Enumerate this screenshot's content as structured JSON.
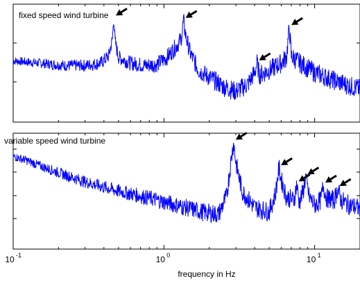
{
  "chart_data": [
    {
      "type": "line",
      "title": "fixed speed wind  turbine",
      "x_scale": "log",
      "xlim": [
        0.1,
        20
      ],
      "y_scale": "log",
      "y_ticks_labeled": false,
      "color": "#0000ff",
      "points": [
        [
          0.1,
          0.52
        ],
        [
          0.15,
          0.5
        ],
        [
          0.22,
          0.48
        ],
        [
          0.3,
          0.48
        ],
        [
          0.38,
          0.5
        ],
        [
          0.43,
          0.56
        ],
        [
          0.455,
          0.7
        ],
        [
          0.465,
          0.88
        ],
        [
          0.475,
          0.68
        ],
        [
          0.5,
          0.55
        ],
        [
          0.6,
          0.5
        ],
        [
          0.75,
          0.48
        ],
        [
          0.9,
          0.49
        ],
        [
          1.05,
          0.55
        ],
        [
          1.2,
          0.64
        ],
        [
          1.3,
          0.7
        ],
        [
          1.35,
          0.86
        ],
        [
          1.4,
          0.72
        ],
        [
          1.5,
          0.58
        ],
        [
          1.7,
          0.44
        ],
        [
          2.0,
          0.38
        ],
        [
          2.5,
          0.3
        ],
        [
          3.0,
          0.26
        ],
        [
          3.6,
          0.32
        ],
        [
          4.0,
          0.42
        ],
        [
          4.15,
          0.5
        ],
        [
          4.3,
          0.4
        ],
        [
          5.0,
          0.44
        ],
        [
          6.0,
          0.5
        ],
        [
          6.5,
          0.55
        ],
        [
          6.8,
          0.8
        ],
        [
          7.0,
          0.56
        ],
        [
          8.0,
          0.5
        ],
        [
          10.0,
          0.42
        ],
        [
          13.0,
          0.36
        ],
        [
          16.0,
          0.32
        ],
        [
          20.0,
          0.28
        ]
      ],
      "arrows_at_x": [
        0.465,
        1.35,
        4.15,
        6.8
      ]
    },
    {
      "type": "line",
      "title": "variable speed wind turbine",
      "x_scale": "log",
      "xlim": [
        0.1,
        20
      ],
      "y_scale": "log",
      "y_ticks_labeled": false,
      "xlabel": "frequency in Hz",
      "x_ticks": [
        0.1,
        1,
        10
      ],
      "x_tick_labels": [
        [
          "10",
          "-1"
        ],
        [
          "10",
          "0"
        ],
        [
          "10",
          "1"
        ]
      ],
      "color": "#0000ff",
      "points": [
        [
          0.1,
          0.8
        ],
        [
          0.12,
          0.77
        ],
        [
          0.15,
          0.72
        ],
        [
          0.2,
          0.66
        ],
        [
          0.3,
          0.58
        ],
        [
          0.5,
          0.5
        ],
        [
          0.8,
          0.44
        ],
        [
          1.2,
          0.38
        ],
        [
          1.8,
          0.32
        ],
        [
          2.3,
          0.3
        ],
        [
          2.6,
          0.45
        ],
        [
          2.8,
          0.78
        ],
        [
          2.9,
          0.92
        ],
        [
          3.0,
          0.75
        ],
        [
          3.3,
          0.5
        ],
        [
          4.0,
          0.36
        ],
        [
          5.0,
          0.32
        ],
        [
          5.5,
          0.48
        ],
        [
          5.8,
          0.7
        ],
        [
          6.0,
          0.6
        ],
        [
          6.5,
          0.45
        ],
        [
          7.3,
          0.42
        ],
        [
          7.6,
          0.56
        ],
        [
          7.9,
          0.4
        ],
        [
          8.4,
          0.5
        ],
        [
          8.7,
          0.62
        ],
        [
          9.2,
          0.45
        ],
        [
          10.0,
          0.38
        ],
        [
          11.0,
          0.42
        ],
        [
          11.4,
          0.55
        ],
        [
          12.0,
          0.44
        ],
        [
          13.5,
          0.42
        ],
        [
          14.2,
          0.52
        ],
        [
          15.0,
          0.42
        ],
        [
          17.0,
          0.38
        ],
        [
          20.0,
          0.35
        ]
      ],
      "arrows_at_x": [
        2.9,
        5.8,
        7.6,
        8.7,
        11.4,
        14.2
      ]
    }
  ]
}
